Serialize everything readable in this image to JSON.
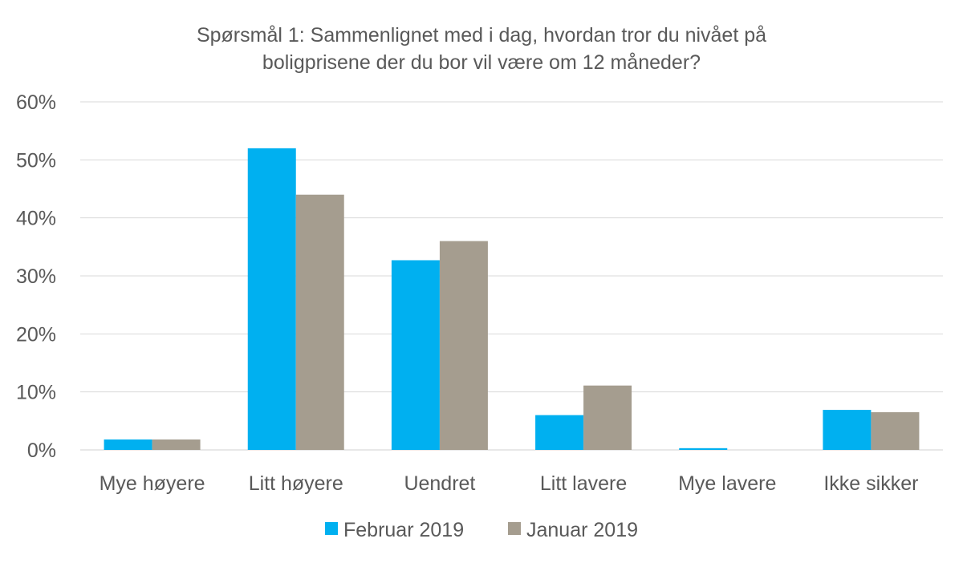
{
  "chart_data": {
    "type": "bar",
    "title_lines": [
      "Spørsmål 1: Sammenlignet  med i dag, hvordan tror du nivået på",
      "boligprisene  der du bor vil være om 12 måneder?"
    ],
    "categories": [
      "Mye høyere",
      "Litt høyere",
      "Uendret",
      "Litt lavere",
      "Mye lavere",
      "Ikke sikker"
    ],
    "series": [
      {
        "name": "Februar 2019",
        "color": "#00b0f0",
        "values": [
          1.8,
          52.0,
          32.7,
          6.0,
          0.3,
          6.9
        ]
      },
      {
        "name": "Januar 2019",
        "color": "#a59d8f",
        "values": [
          1.8,
          44.0,
          36.0,
          11.1,
          0.0,
          6.5
        ]
      }
    ],
    "ylim": [
      0,
      60
    ],
    "yticks": [
      0,
      10,
      20,
      30,
      40,
      50,
      60
    ],
    "ytick_labels": [
      "0%",
      "10%",
      "20%",
      "30%",
      "40%",
      "50%",
      "60%"
    ],
    "grid": true,
    "legend_position": "bottom"
  }
}
